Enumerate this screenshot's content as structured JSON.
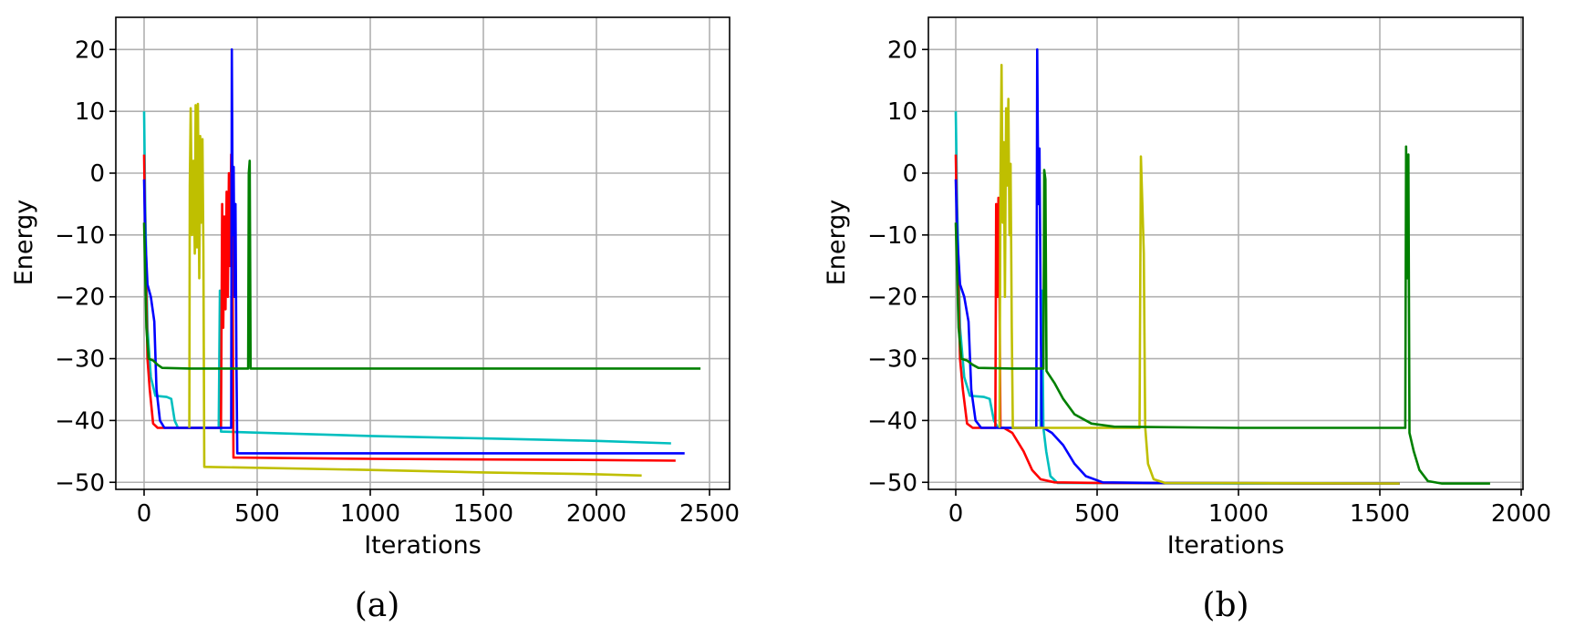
{
  "chart_data": [
    {
      "type": "line",
      "panel_label": "(a)",
      "title": "",
      "xlabel": "Iterations",
      "ylabel": "Energy",
      "xlim": [
        -130,
        2600
      ],
      "ylim": [
        -51,
        25
      ],
      "xticks": [
        0,
        500,
        1000,
        1500,
        2000,
        2500
      ],
      "yticks": [
        20,
        10,
        0,
        -10,
        -20,
        -30,
        -40,
        -50
      ],
      "grid": true,
      "legend": "none",
      "series": [
        {
          "name": "cyan",
          "color": "#00bfbf",
          "points": [
            [
              0,
              10
            ],
            [
              5,
              -5
            ],
            [
              15,
              -25
            ],
            [
              30,
              -33
            ],
            [
              50,
              -36
            ],
            [
              100,
              -36.2
            ],
            [
              120,
              -36.5
            ],
            [
              135,
              -40
            ],
            [
              150,
              -41.2
            ],
            [
              200,
              -41.2
            ],
            [
              330,
              -41.2
            ],
            [
              335,
              -19
            ],
            [
              340,
              -41.8
            ],
            [
              1000,
              -42.5
            ],
            [
              1500,
              -42.9
            ],
            [
              2000,
              -43.3
            ],
            [
              2330,
              -43.7
            ]
          ]
        },
        {
          "name": "red",
          "color": "#ff0000",
          "points": [
            [
              0,
              3
            ],
            [
              5,
              -10
            ],
            [
              15,
              -30
            ],
            [
              25,
              -35
            ],
            [
              40,
              -40.5
            ],
            [
              60,
              -41.2
            ],
            [
              340,
              -41.2
            ],
            [
              345,
              -5
            ],
            [
              350,
              -25
            ],
            [
              355,
              -7
            ],
            [
              360,
              -22
            ],
            [
              365,
              -3
            ],
            [
              370,
              -20
            ],
            [
              375,
              0
            ],
            [
              380,
              -15
            ],
            [
              385,
              3
            ],
            [
              390,
              -10
            ],
            [
              395,
              -46
            ],
            [
              1000,
              -46.2
            ],
            [
              2000,
              -46.4
            ],
            [
              2350,
              -46.5
            ]
          ]
        },
        {
          "name": "blue",
          "color": "#0000ff",
          "points": [
            [
              0,
              -1
            ],
            [
              5,
              -10
            ],
            [
              15,
              -18
            ],
            [
              30,
              -20
            ],
            [
              45,
              -24
            ],
            [
              55,
              -35
            ],
            [
              70,
              -40
            ],
            [
              90,
              -41.2
            ],
            [
              385,
              -41.2
            ],
            [
              388,
              20
            ],
            [
              392,
              -10
            ],
            [
              396,
              1
            ],
            [
              400,
              -20
            ],
            [
              404,
              -5
            ],
            [
              408,
              -30
            ],
            [
              412,
              -45.3
            ],
            [
              1000,
              -45.3
            ],
            [
              2000,
              -45.3
            ],
            [
              2390,
              -45.3
            ]
          ]
        },
        {
          "name": "yellow",
          "color": "#bfbf00",
          "points": [
            [
              200,
              -41.2
            ],
            [
              202,
              -2
            ],
            [
              206,
              10.5
            ],
            [
              212,
              -10
            ],
            [
              218,
              2
            ],
            [
              224,
              -13
            ],
            [
              228,
              11
            ],
            [
              234,
              -12
            ],
            [
              238,
              11.2
            ],
            [
              244,
              -17
            ],
            [
              248,
              6
            ],
            [
              252,
              -8
            ],
            [
              258,
              5.5
            ],
            [
              262,
              -12
            ],
            [
              266,
              -47.5
            ],
            [
              1000,
              -48
            ],
            [
              1500,
              -48.4
            ],
            [
              2000,
              -48.7
            ],
            [
              2200,
              -48.9
            ]
          ]
        },
        {
          "name": "green",
          "color": "#008000",
          "points": [
            [
              0,
              -8
            ],
            [
              10,
              -25
            ],
            [
              20,
              -30
            ],
            [
              40,
              -30.3
            ],
            [
              60,
              -31
            ],
            [
              80,
              -31.5
            ],
            [
              200,
              -31.6
            ],
            [
              460,
              -31.6
            ],
            [
              463,
              0
            ],
            [
              467,
              2
            ],
            [
              471,
              -31.6
            ],
            [
              1000,
              -31.6
            ],
            [
              2000,
              -31.6
            ],
            [
              2460,
              -31.6
            ]
          ]
        }
      ]
    },
    {
      "type": "line",
      "panel_label": "(b)",
      "title": "",
      "xlabel": "Iterations",
      "ylabel": "Energy",
      "xlim": [
        -95,
        2000
      ],
      "ylim": [
        -51,
        25
      ],
      "xticks": [
        0,
        500,
        1000,
        1500,
        2000
      ],
      "yticks": [
        20,
        10,
        0,
        -10,
        -20,
        -30,
        -40,
        -50
      ],
      "grid": true,
      "legend": "none",
      "series": [
        {
          "name": "cyan",
          "color": "#00bfbf",
          "points": [
            [
              0,
              10
            ],
            [
              5,
              -5
            ],
            [
              15,
              -25
            ],
            [
              30,
              -33
            ],
            [
              50,
              -36
            ],
            [
              100,
              -36.2
            ],
            [
              120,
              -36.5
            ],
            [
              135,
              -40
            ],
            [
              150,
              -41.2
            ],
            [
              300,
              -41.2
            ],
            [
              305,
              -19
            ],
            [
              310,
              -41.2
            ],
            [
              320,
              -45
            ],
            [
              335,
              -49
            ],
            [
              360,
              -50.1
            ],
            [
              1000,
              -50.2
            ],
            [
              1570,
              -50.2
            ]
          ]
        },
        {
          "name": "red",
          "color": "#ff0000",
          "points": [
            [
              0,
              3
            ],
            [
              5,
              -10
            ],
            [
              15,
              -30
            ],
            [
              25,
              -35
            ],
            [
              40,
              -40.5
            ],
            [
              60,
              -41.2
            ],
            [
              140,
              -41.2
            ],
            [
              143,
              -5
            ],
            [
              147,
              -20
            ],
            [
              151,
              -4
            ],
            [
              155,
              -20
            ],
            [
              158,
              -41.2
            ],
            [
              170,
              -41.2
            ],
            [
              200,
              -42
            ],
            [
              240,
              -45
            ],
            [
              270,
              -48
            ],
            [
              300,
              -49.5
            ],
            [
              350,
              -50
            ],
            [
              500,
              -50.1
            ],
            [
              1570,
              -50.2
            ]
          ]
        },
        {
          "name": "blue",
          "color": "#0000ff",
          "points": [
            [
              0,
              -1
            ],
            [
              5,
              -10
            ],
            [
              15,
              -18
            ],
            [
              30,
              -20
            ],
            [
              45,
              -24
            ],
            [
              55,
              -35
            ],
            [
              70,
              -40
            ],
            [
              90,
              -41.2
            ],
            [
              285,
              -41.2
            ],
            [
              288,
              20
            ],
            [
              292,
              -5
            ],
            [
              296,
              4
            ],
            [
              300,
              -20
            ],
            [
              304,
              -41
            ],
            [
              340,
              -42
            ],
            [
              380,
              -44
            ],
            [
              420,
              -47
            ],
            [
              460,
              -49
            ],
            [
              520,
              -50
            ],
            [
              700,
              -50.1
            ],
            [
              1570,
              -50.2
            ]
          ]
        },
        {
          "name": "yellow",
          "color": "#bfbf00",
          "points": [
            [
              155,
              -41.2
            ],
            [
              158,
              -2
            ],
            [
              162,
              17.5
            ],
            [
              166,
              -8
            ],
            [
              170,
              5
            ],
            [
              174,
              -20
            ],
            [
              178,
              10.5
            ],
            [
              182,
              -2
            ],
            [
              186,
              12
            ],
            [
              190,
              -10
            ],
            [
              194,
              1.5
            ],
            [
              198,
              -25
            ],
            [
              202,
              -41.2
            ],
            [
              650,
              -41.2
            ],
            [
              655,
              2.7
            ],
            [
              660,
              -5
            ],
            [
              665,
              -13
            ],
            [
              670,
              -41
            ],
            [
              680,
              -47
            ],
            [
              700,
              -49.5
            ],
            [
              740,
              -50.1
            ],
            [
              1570,
              -50.2
            ]
          ]
        },
        {
          "name": "green",
          "color": "#008000",
          "points": [
            [
              0,
              -8
            ],
            [
              10,
              -25
            ],
            [
              20,
              -30
            ],
            [
              40,
              -30.3
            ],
            [
              60,
              -31
            ],
            [
              80,
              -31.5
            ],
            [
              200,
              -31.6
            ],
            [
              310,
              -31.6
            ],
            [
              313,
              0.5
            ],
            [
              317,
              -1
            ],
            [
              321,
              -32
            ],
            [
              350,
              -34
            ],
            [
              380,
              -36.5
            ],
            [
              420,
              -39
            ],
            [
              480,
              -40.5
            ],
            [
              560,
              -41
            ],
            [
              1000,
              -41.2
            ],
            [
              1590,
              -41.2
            ],
            [
              1593,
              4.3
            ],
            [
              1597,
              -17
            ],
            [
              1601,
              3
            ],
            [
              1605,
              -42
            ],
            [
              1620,
              -45
            ],
            [
              1640,
              -48
            ],
            [
              1670,
              -49.8
            ],
            [
              1720,
              -50.2
            ],
            [
              1890,
              -50.2
            ]
          ]
        }
      ]
    }
  ]
}
